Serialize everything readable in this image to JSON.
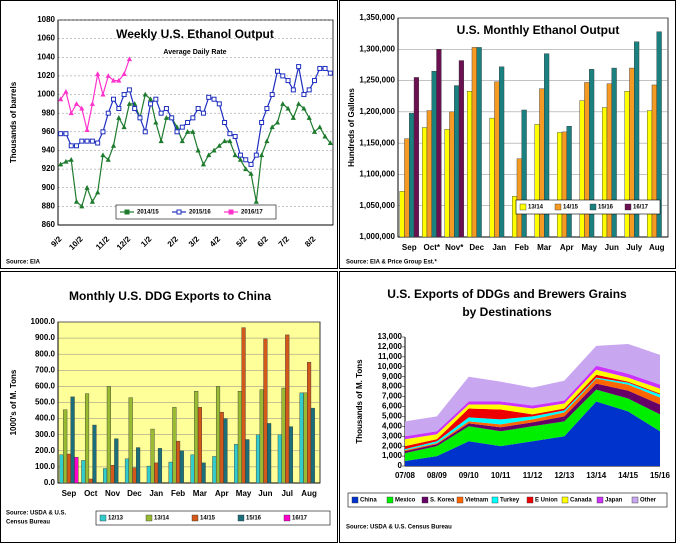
{
  "chart_data": [
    {
      "type": "line",
      "title": "Weekly U.S. Ethanol Output",
      "subtitle": "Average Daily Rate",
      "y_label": "Thousands of barrels",
      "source": [
        "Source: EIA"
      ],
      "categories": [
        "9/2",
        null,
        null,
        null,
        "10/2",
        null,
        null,
        null,
        null,
        "11/2",
        null,
        null,
        null,
        "12/2",
        null,
        null,
        null,
        "1/2",
        null,
        null,
        null,
        null,
        "2/2",
        null,
        null,
        null,
        "3/2",
        null,
        null,
        null,
        "4/2",
        null,
        null,
        null,
        null,
        "5/2",
        null,
        null,
        null,
        "6/2",
        null,
        null,
        null,
        "7/2",
        null,
        null,
        null,
        null,
        "8/2",
        null,
        null,
        null
      ],
      "series": [
        {
          "name": "2014/15",
          "color": "#1e7b2e",
          "marker": "triangle",
          "values": [
            925,
            928,
            930,
            885,
            880,
            900,
            885,
            895,
            935,
            930,
            945,
            975,
            965,
            990,
            990,
            975,
            1000,
            995,
            970,
            950,
            975,
            975,
            965,
            950,
            960,
            960,
            940,
            925,
            935,
            940,
            945,
            950,
            950,
            935,
            930,
            920,
            915,
            885,
            935,
            950,
            965,
            970,
            990,
            985,
            975,
            990,
            985,
            975,
            960,
            965,
            955,
            948
          ]
        },
        {
          "name": "2015/16",
          "color": "#1f2fbf",
          "marker": "square",
          "values": [
            958,
            958,
            945,
            945,
            950,
            950,
            950,
            948,
            960,
            980,
            995,
            985,
            1000,
            1005,
            985,
            975,
            960,
            990,
            995,
            980,
            985,
            975,
            960,
            965,
            970,
            975,
            985,
            980,
            997,
            995,
            990,
            970,
            958,
            955,
            935,
            930,
            925,
            935,
            970,
            985,
            1000,
            1025,
            1020,
            1015,
            1005,
            1030,
            1000,
            1005,
            1015,
            1028,
            1028,
            1023
          ]
        },
        {
          "name": "2016/17",
          "color": "#ff33cc",
          "marker": "triangle",
          "values": [
            995,
            1003,
            980,
            990,
            985,
            962,
            990,
            1022,
            1000,
            1020,
            1015,
            1015,
            1022,
            1038,
            null,
            null,
            null,
            null,
            null,
            null,
            null,
            null,
            null,
            null,
            null,
            null,
            null,
            null,
            null,
            null,
            null,
            null,
            null,
            null,
            null,
            null,
            null,
            null,
            null,
            null,
            null,
            null,
            null,
            null,
            null,
            null,
            null,
            null,
            null,
            null,
            null,
            null
          ]
        }
      ],
      "ylim": [
        860,
        1080
      ],
      "yticks": [
        860,
        880,
        900,
        920,
        940,
        960,
        980,
        1000,
        1020,
        1040,
        1060,
        1080
      ],
      "grid": true,
      "legend": "lower center"
    },
    {
      "type": "bar",
      "title": "U.S. Monthly Ethanol Output",
      "y_label": "Hundreds of Gallons",
      "source": [
        "Source: EIA & Price Group Est.*"
      ],
      "categories": [
        "Sep",
        "Oct*",
        "Nov*",
        "Dec",
        "Jan",
        "Feb",
        "Mar",
        "Apr",
        "May",
        "Jun",
        "July",
        "Aug"
      ],
      "series": [
        {
          "name": "13/14",
          "color": "#ffff00",
          "values": [
            1073000,
            1175000,
            1172000,
            1233000,
            1190000,
            1065000,
            1180000,
            1167000,
            1218000,
            1207000,
            1233000,
            1202000
          ]
        },
        {
          "name": "14/15",
          "color": "#f59a23",
          "values": [
            1157000,
            1202000,
            1200000,
            1303000,
            1248000,
            1125000,
            1237000,
            1168000,
            1247000,
            1245000,
            1270000,
            1243000
          ]
        },
        {
          "name": "15/16",
          "color": "#1a8080",
          "values": [
            1198000,
            1265000,
            1242000,
            1303000,
            1272000,
            1203000,
            1293000,
            1177000,
            1268000,
            1270000,
            1312000,
            1328000
          ]
        },
        {
          "name": "16/17",
          "color": "#6b1050",
          "values": [
            1255000,
            1300000,
            1282000,
            null,
            null,
            null,
            null,
            null,
            null,
            null,
            null,
            null
          ]
        }
      ],
      "ylim": [
        1000000,
        1350000
      ],
      "yticks": [
        {
          "value": 1000000,
          "label": "1,000,000"
        },
        {
          "value": 1050000,
          "label": "1,050,000"
        },
        {
          "value": 1100000,
          "label": "1,100,000"
        },
        {
          "value": 1150000,
          "label": "1,150,000"
        },
        {
          "value": 1200000,
          "label": "1,200,000"
        },
        {
          "value": 1250000,
          "label": "1,250,000"
        },
        {
          "value": 1300000,
          "label": "1,300,000"
        },
        {
          "value": 1350000,
          "label": "1,350,000"
        }
      ],
      "grid": true,
      "legend": "lower right"
    },
    {
      "type": "bar",
      "title": "Monthly U.S. DDG Exports to China",
      "y_label": "1000's of M. Tons",
      "source": [
        "Source: USDA & U.S.",
        "Census Bureau"
      ],
      "categories": [
        "Sep",
        "Oct",
        "Nov",
        "Dec",
        "Jan",
        "Feb",
        "Mar",
        "Apr",
        "May",
        "Jun",
        "Jul",
        "Aug"
      ],
      "series": [
        {
          "name": "12/13",
          "color": "#33cccc",
          "values": [
            175,
            140,
            90,
            150,
            105,
            130,
            175,
            165,
            240,
            300,
            300,
            560
          ]
        },
        {
          "name": "13/14",
          "color": "#99bb33",
          "values": [
            455,
            555,
            600,
            530,
            335,
            470,
            570,
            600,
            570,
            580,
            590,
            560
          ]
        },
        {
          "name": "14/15",
          "color": "#d2591a",
          "values": [
            180,
            25,
            110,
            95,
            125,
            260,
            470,
            440,
            965,
            895,
            920,
            750
          ]
        },
        {
          "name": "15/16",
          "color": "#1a6f7a",
          "values": [
            535,
            360,
            275,
            220,
            215,
            200,
            125,
            400,
            270,
            370,
            350,
            465
          ]
        },
        {
          "name": "16/17",
          "color": "#ff00cc",
          "values": [
            160,
            null,
            null,
            null,
            null,
            null,
            null,
            null,
            null,
            null,
            null,
            null
          ]
        }
      ],
      "ylim": [
        0,
        1000
      ],
      "yticks": [
        {
          "value": 0,
          "label": "0.0"
        },
        {
          "value": 100,
          "label": "100.0"
        },
        {
          "value": 200,
          "label": "200.0"
        },
        {
          "value": 300,
          "label": "300.0"
        },
        {
          "value": 400,
          "label": "400.0"
        },
        {
          "value": 500,
          "label": "500.0"
        },
        {
          "value": 600,
          "label": "600.0"
        },
        {
          "value": 700,
          "label": "700.0"
        },
        {
          "value": 800,
          "label": "800.0"
        },
        {
          "value": 900,
          "label": "900.0"
        },
        {
          "value": 1000,
          "label": "1000.0"
        }
      ],
      "grid": true,
      "background": "#ffff99",
      "legend": "bottom"
    },
    {
      "type": "area",
      "title": [
        "U.S. Exports of DDGs and Brewers Grains",
        "by Destinations"
      ],
      "y_label": "Thousands of M. Tons",
      "source": [
        "Source: USDA & U.S. Census Bureau"
      ],
      "categories": [
        "07/08",
        "08/09",
        "09/10",
        "10/11",
        "11/12",
        "12/13",
        "13/14",
        "14/15",
        "15/16"
      ],
      "series": [
        {
          "name": "China",
          "color": "#0033cc",
          "values": [
            500,
            1000,
            2500,
            2000,
            2500,
            3000,
            6500,
            5500,
            3500
          ]
        },
        {
          "name": "Mexico",
          "color": "#00ee00",
          "values": [
            800,
            1000,
            1500,
            1500,
            1500,
            1500,
            1200,
            1300,
            1700
          ]
        },
        {
          "name": "S. Korea",
          "color": "#660066",
          "values": [
            200,
            200,
            300,
            400,
            400,
            500,
            600,
            800,
            1000
          ]
        },
        {
          "name": "Vietnam",
          "color": "#ff6600",
          "values": [
            100,
            100,
            200,
            300,
            300,
            400,
            500,
            600,
            700
          ]
        },
        {
          "name": "Turkey",
          "color": "#00ffff",
          "values": [
            100,
            200,
            400,
            500,
            300,
            200,
            100,
            200,
            300
          ]
        },
        {
          "name": "E Union",
          "color": "#ee0000",
          "values": [
            300,
            200,
            900,
            1000,
            200,
            200,
            300,
            100,
            100
          ]
        },
        {
          "name": "Canada",
          "color": "#ffff00",
          "values": [
            700,
            500,
            400,
            500,
            600,
            500,
            500,
            400,
            500
          ]
        },
        {
          "name": "Japan",
          "color": "#cc33ff",
          "values": [
            300,
            300,
            300,
            300,
            300,
            300,
            400,
            400,
            400
          ]
        },
        {
          "name": "Other",
          "color": "#c9a6f0",
          "values": [
            1500,
            1500,
            2500,
            2000,
            1800,
            2000,
            2000,
            3000,
            3000
          ]
        }
      ],
      "ylim": [
        0,
        13000
      ],
      "yticks": [
        0,
        {
          "value": 1000,
          "label": "1,000"
        },
        {
          "value": 2000,
          "label": "2,000"
        },
        {
          "value": 3000,
          "label": "3,000"
        },
        {
          "value": 4000,
          "label": "4,000"
        },
        {
          "value": 5000,
          "label": "5,000"
        },
        {
          "value": 6000,
          "label": "6,000"
        },
        {
          "value": 7000,
          "label": "7,000"
        },
        {
          "value": 8000,
          "label": "8,000"
        },
        {
          "value": 9000,
          "label": "9,000"
        },
        {
          "value": 10000,
          "label": "10,000"
        },
        {
          "value": 11000,
          "label": "11,000"
        },
        {
          "value": 12000,
          "label": "12,000"
        },
        {
          "value": 13000,
          "label": "13,000"
        }
      ],
      "grid": false,
      "legend": "bottom"
    }
  ]
}
